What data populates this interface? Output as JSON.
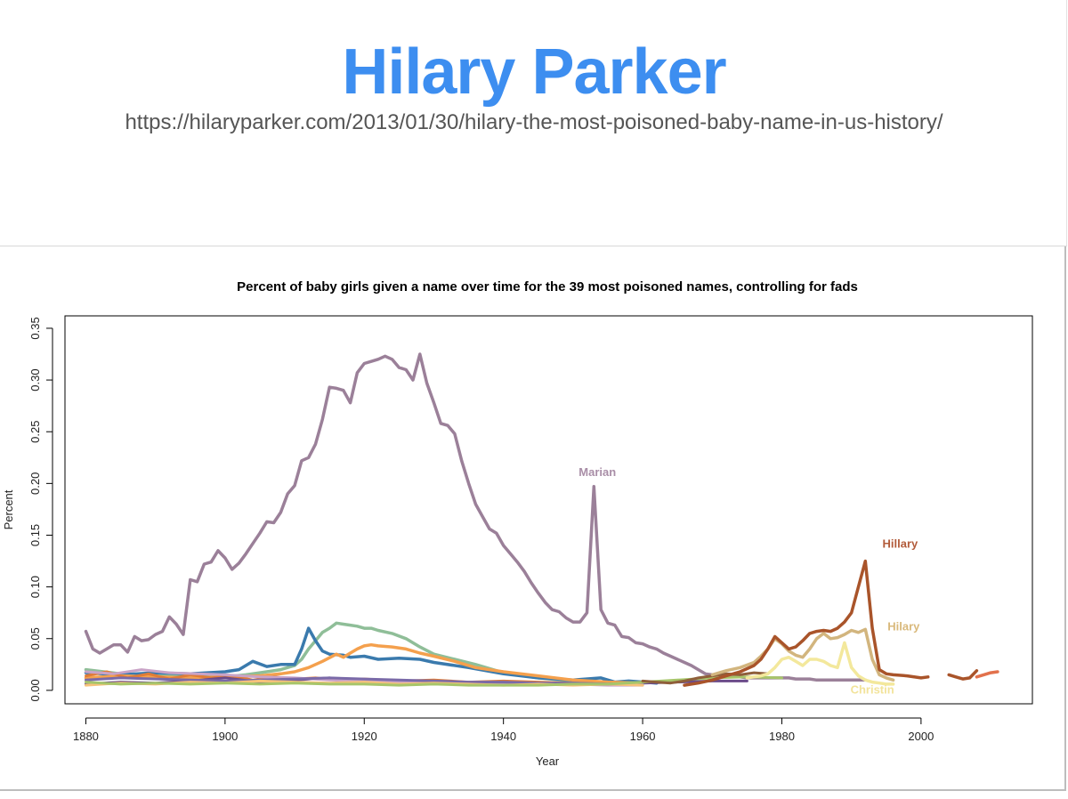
{
  "slide": {
    "title": "Hilary Parker",
    "url": "https://hilaryparker.com/2013/01/30/hilary-the-most-poisoned-baby-name-in-us-history/",
    "title_color": "#3d8ef0"
  },
  "chart_data": {
    "type": "line",
    "title": "Percent of baby girls given a name over time for the 39 most poisoned names, controlling for fads",
    "xlabel": "Year",
    "ylabel": "Percent",
    "xlim": [
      1877,
      2016
    ],
    "ylim": [
      -0.013,
      0.362
    ],
    "xticks": [
      1880,
      1900,
      1920,
      1940,
      1960,
      1980,
      2000
    ],
    "yticks": [
      0.0,
      0.05,
      0.1,
      0.15,
      0.2,
      0.25,
      0.3,
      0.35
    ],
    "ytick_labels": [
      "0.00",
      "0.05",
      "0.10",
      "0.15",
      "0.20",
      "0.25",
      "0.30",
      "0.35"
    ],
    "grid": false,
    "annotations": [
      {
        "text": "Marian",
        "x": 1953.5,
        "y": 0.207,
        "color": "#a98ea7"
      },
      {
        "text": "Hillary",
        "x": 1997,
        "y": 0.138,
        "color": "#b25b3a"
      },
      {
        "text": "Hilary",
        "x": 1997.5,
        "y": 0.058,
        "color": "#d9b97b"
      },
      {
        "text": "Christin",
        "x": 1993,
        "y": -0.003,
        "color": "#f2e39a"
      }
    ],
    "series": [
      {
        "name": "Marian",
        "color": "#9b8099",
        "width": 3.5,
        "x": [
          1880,
          1881,
          1882,
          1883,
          1884,
          1885,
          1886,
          1887,
          1888,
          1889,
          1890,
          1891,
          1892,
          1893,
          1894,
          1895,
          1896,
          1897,
          1898,
          1899,
          1900,
          1901,
          1902,
          1903,
          1904,
          1905,
          1906,
          1907,
          1908,
          1909,
          1910,
          1911,
          1912,
          1913,
          1914,
          1915,
          1916,
          1917,
          1918,
          1919,
          1920,
          1921,
          1922,
          1923,
          1924,
          1925,
          1926,
          1927,
          1928,
          1929,
          1930,
          1931,
          1932,
          1933,
          1934,
          1935,
          1936,
          1937,
          1938,
          1939,
          1940,
          1941,
          1942,
          1943,
          1944,
          1945,
          1946,
          1947,
          1948,
          1949,
          1950,
          1951,
          1952,
          1953,
          1954,
          1955,
          1956,
          1957,
          1958,
          1959,
          1960,
          1961,
          1962,
          1963,
          1964,
          1965,
          1966,
          1967,
          1968,
          1969,
          1970,
          1971,
          1972,
          1973,
          1974,
          1975,
          1976,
          1977,
          1978,
          1979,
          1980,
          1981,
          1982,
          1983,
          1984,
          1985,
          1986,
          1987,
          1988,
          1989,
          1990,
          1991,
          1992
        ],
        "y": [
          0.057,
          0.04,
          0.036,
          0.04,
          0.044,
          0.044,
          0.037,
          0.052,
          0.048,
          0.049,
          0.054,
          0.057,
          0.071,
          0.064,
          0.054,
          0.107,
          0.105,
          0.122,
          0.124,
          0.135,
          0.128,
          0.117,
          0.123,
          0.132,
          0.142,
          0.152,
          0.163,
          0.162,
          0.172,
          0.19,
          0.198,
          0.222,
          0.225,
          0.238,
          0.262,
          0.293,
          0.292,
          0.29,
          0.278,
          0.307,
          0.316,
          0.318,
          0.32,
          0.323,
          0.32,
          0.312,
          0.31,
          0.3,
          0.325,
          0.297,
          0.278,
          0.258,
          0.256,
          0.248,
          0.222,
          0.2,
          0.18,
          0.168,
          0.156,
          0.152,
          0.14,
          0.132,
          0.124,
          0.115,
          0.104,
          0.094,
          0.085,
          0.078,
          0.076,
          0.07,
          0.066,
          0.066,
          0.075,
          0.197,
          0.078,
          0.065,
          0.063,
          0.052,
          0.051,
          0.046,
          0.045,
          0.042,
          0.04,
          0.036,
          0.033,
          0.03,
          0.027,
          0.024,
          0.02,
          0.016,
          0.015,
          0.015,
          0.014,
          0.013,
          0.013,
          0.012,
          0.012,
          0.012,
          0.012,
          0.012,
          0.012,
          0.012,
          0.011,
          0.011,
          0.011,
          0.01,
          0.01,
          0.01,
          0.01,
          0.01,
          0.01,
          0.01,
          0.01
        ]
      },
      {
        "name": "",
        "color": "#8fbe98",
        "width": 3.5,
        "x": [
          1880,
          1885,
          1890,
          1895,
          1900,
          1903,
          1906,
          1908,
          1910,
          1911,
          1912,
          1913,
          1914,
          1915,
          1916,
          1917,
          1918,
          1919,
          1920,
          1921,
          1922,
          1924,
          1926,
          1928,
          1930,
          1933,
          1936,
          1940,
          1945,
          1950,
          1955,
          1960
        ],
        "y": [
          0.02,
          0.016,
          0.015,
          0.014,
          0.013,
          0.015,
          0.018,
          0.02,
          0.024,
          0.03,
          0.04,
          0.048,
          0.056,
          0.06,
          0.065,
          0.064,
          0.063,
          0.062,
          0.06,
          0.06,
          0.058,
          0.055,
          0.05,
          0.042,
          0.035,
          0.03,
          0.025,
          0.017,
          0.012,
          0.009,
          0.008,
          0.007
        ]
      },
      {
        "name": "",
        "color": "#3a7aad",
        "width": 3.5,
        "x": [
          1880,
          1885,
          1890,
          1895,
          1900,
          1902,
          1904,
          1906,
          1908,
          1910,
          1911,
          1912,
          1913,
          1914,
          1915,
          1917,
          1918,
          1920,
          1922,
          1925,
          1928,
          1930,
          1935,
          1940,
          1945,
          1950,
          1954,
          1956,
          1958,
          1962
        ],
        "y": [
          0.017,
          0.015,
          0.017,
          0.016,
          0.018,
          0.02,
          0.028,
          0.023,
          0.025,
          0.025,
          0.04,
          0.06,
          0.048,
          0.038,
          0.035,
          0.034,
          0.032,
          0.033,
          0.03,
          0.031,
          0.03,
          0.027,
          0.022,
          0.016,
          0.012,
          0.01,
          0.012,
          0.008,
          0.009,
          0.007
        ]
      },
      {
        "name": "",
        "color": "#f4a04d",
        "width": 3.5,
        "x": [
          1880,
          1885,
          1890,
          1895,
          1900,
          1905,
          1908,
          1910,
          1912,
          1914,
          1916,
          1917,
          1918,
          1919,
          1920,
          1921,
          1922,
          1924,
          1926,
          1928,
          1930,
          1933,
          1936,
          1940,
          1945,
          1950,
          1955,
          1960
        ],
        "y": [
          0.012,
          0.014,
          0.013,
          0.012,
          0.013,
          0.014,
          0.016,
          0.018,
          0.022,
          0.028,
          0.035,
          0.032,
          0.036,
          0.04,
          0.043,
          0.044,
          0.043,
          0.042,
          0.04,
          0.036,
          0.033,
          0.028,
          0.022,
          0.018,
          0.014,
          0.01,
          0.008,
          0.007
        ]
      },
      {
        "name": "",
        "color": "#e07c37",
        "width": 3,
        "x": [
          1880,
          1883,
          1886,
          1889,
          1892,
          1895,
          1898,
          1901,
          1904,
          1907,
          1910,
          1913,
          1916,
          1920,
          1925,
          1930,
          1935,
          1940,
          1945,
          1950,
          1955,
          1960
        ],
        "y": [
          0.014,
          0.018,
          0.012,
          0.016,
          0.011,
          0.015,
          0.012,
          0.014,
          0.01,
          0.013,
          0.011,
          0.012,
          0.01,
          0.011,
          0.009,
          0.01,
          0.008,
          0.009,
          0.008,
          0.007,
          0.006,
          0.006
        ]
      },
      {
        "name": "",
        "color": "#6b4b8a",
        "width": 3,
        "x": [
          1880,
          1885,
          1890,
          1895,
          1900,
          1905,
          1910,
          1915,
          1920,
          1925,
          1930,
          1935,
          1940,
          1945,
          1950,
          1955,
          1960,
          1965,
          1970,
          1975
        ],
        "y": [
          0.006,
          0.008,
          0.007,
          0.009,
          0.012,
          0.008,
          0.01,
          0.012,
          0.009,
          0.008,
          0.008,
          0.007,
          0.006,
          0.006,
          0.006,
          0.006,
          0.007,
          0.008,
          0.009,
          0.009
        ]
      },
      {
        "name": "",
        "color": "#c9a3c7",
        "width": 3,
        "x": [
          1880,
          1884,
          1888,
          1892,
          1896,
          1900,
          1905,
          1910,
          1915,
          1920,
          1925,
          1930,
          1935,
          1940,
          1945,
          1950,
          1955,
          1960
        ],
        "y": [
          0.018,
          0.016,
          0.02,
          0.017,
          0.016,
          0.015,
          0.013,
          0.012,
          0.01,
          0.009,
          0.008,
          0.008,
          0.007,
          0.006,
          0.006,
          0.006,
          0.005,
          0.005
        ]
      },
      {
        "name": "",
        "color": "#7a6aa8",
        "width": 3,
        "x": [
          1880,
          1885,
          1890,
          1895,
          1900,
          1905,
          1910,
          1915,
          1920,
          1925,
          1930,
          1935,
          1940,
          1945,
          1950,
          1955,
          1960
        ],
        "y": [
          0.01,
          0.012,
          0.011,
          0.01,
          0.009,
          0.01,
          0.011,
          0.012,
          0.011,
          0.01,
          0.009,
          0.008,
          0.008,
          0.007,
          0.007,
          0.006,
          0.006
        ]
      },
      {
        "name": "",
        "color": "#f6c27a",
        "width": 3,
        "x": [
          1880,
          1885,
          1890,
          1895,
          1900,
          1905,
          1910,
          1915,
          1920,
          1925,
          1930,
          1935,
          1940,
          1945,
          1950,
          1955,
          1960
        ],
        "y": [
          0.005,
          0.007,
          0.006,
          0.008,
          0.007,
          0.009,
          0.008,
          0.007,
          0.008,
          0.006,
          0.007,
          0.006,
          0.005,
          0.006,
          0.005,
          0.006,
          0.005
        ]
      },
      {
        "name": "",
        "color": "#a7c56a",
        "width": 3,
        "x": [
          1880,
          1885,
          1890,
          1895,
          1900,
          1905,
          1910,
          1915,
          1920,
          1925,
          1930,
          1935,
          1940,
          1945,
          1950,
          1955,
          1960,
          1965,
          1970,
          1975,
          1980
        ],
        "y": [
          0.008,
          0.006,
          0.007,
          0.006,
          0.007,
          0.006,
          0.007,
          0.006,
          0.006,
          0.005,
          0.006,
          0.005,
          0.005,
          0.005,
          0.006,
          0.006,
          0.008,
          0.01,
          0.012,
          0.013,
          0.012
        ]
      },
      {
        "name": "",
        "color": "#8f5f3a",
        "width": 3,
        "x": [
          1960,
          1962,
          1964,
          1966,
          1968,
          1970,
          1972,
          1974,
          1976,
          1978
        ],
        "y": [
          0.009,
          0.008,
          0.007,
          0.009,
          0.012,
          0.014,
          0.016,
          0.015,
          0.017,
          0.016
        ]
      },
      {
        "name": "Hilary",
        "color": "#d2b57e",
        "width": 3.5,
        "x": [
          1970,
          1972,
          1974,
          1976,
          1977,
          1978,
          1979,
          1980,
          1981,
          1982,
          1983,
          1984,
          1985,
          1986,
          1987,
          1988,
          1989,
          1990,
          1991,
          1992,
          1993,
          1994,
          1995,
          1996
        ],
        "y": [
          0.015,
          0.019,
          0.022,
          0.027,
          0.033,
          0.04,
          0.05,
          0.045,
          0.038,
          0.034,
          0.032,
          0.04,
          0.05,
          0.055,
          0.05,
          0.051,
          0.054,
          0.058,
          0.056,
          0.059,
          0.03,
          0.015,
          0.012,
          0.01
        ]
      },
      {
        "name": "Christin",
        "color": "#f3e89c",
        "width": 3.5,
        "x": [
          1975,
          1977,
          1978,
          1979,
          1980,
          1981,
          1982,
          1983,
          1984,
          1985,
          1986,
          1987,
          1988,
          1989,
          1990,
          1991,
          1992,
          1993,
          1994,
          1995,
          1996
        ],
        "y": [
          0.012,
          0.014,
          0.016,
          0.022,
          0.03,
          0.032,
          0.028,
          0.024,
          0.03,
          0.03,
          0.028,
          0.024,
          0.022,
          0.046,
          0.022,
          0.014,
          0.01,
          0.008,
          0.007,
          0.006,
          0.006
        ]
      },
      {
        "name": "Hillary",
        "color": "#a9542a",
        "width": 3.5,
        "x": [
          1966,
          1968,
          1970,
          1972,
          1974,
          1976,
          1977,
          1978,
          1979,
          1980,
          1981,
          1982,
          1983,
          1984,
          1985,
          1986,
          1987,
          1988,
          1989,
          1990,
          1991,
          1992,
          1993,
          1994,
          1995,
          1996,
          1998,
          2000,
          2001
        ],
        "y": [
          0.005,
          0.007,
          0.01,
          0.014,
          0.018,
          0.024,
          0.03,
          0.04,
          0.052,
          0.046,
          0.04,
          0.042,
          0.048,
          0.055,
          0.057,
          0.058,
          0.057,
          0.06,
          0.066,
          0.075,
          0.1,
          0.125,
          0.06,
          0.02,
          0.016,
          0.015,
          0.014,
          0.012,
          0.013
        ]
      },
      {
        "name": "",
        "color": "#a9542a",
        "width": 3.5,
        "x": [
          2004,
          2005,
          2006,
          2007,
          2008
        ],
        "y": [
          0.015,
          0.013,
          0.011,
          0.012,
          0.019
        ]
      },
      {
        "name": "",
        "color": "#e2714c",
        "width": 3.5,
        "x": [
          2008,
          2009,
          2010,
          2011
        ],
        "y": [
          0.013,
          0.015,
          0.017,
          0.018
        ]
      }
    ]
  }
}
